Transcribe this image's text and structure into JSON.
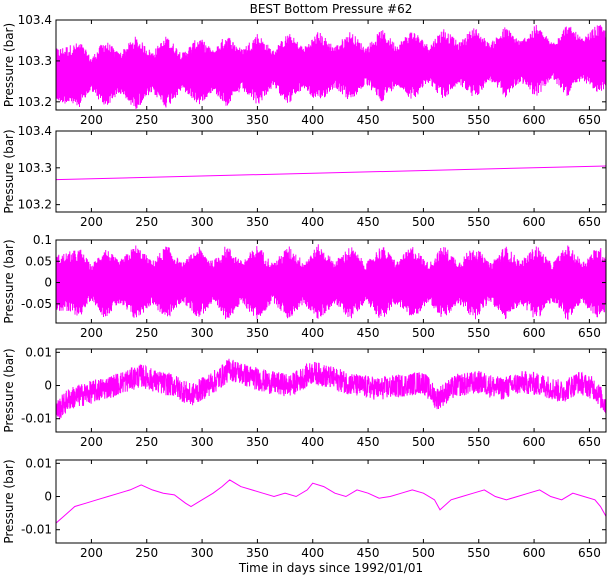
{
  "figure": {
    "title": "BEST Bottom Pressure #62",
    "xlabel": "Time in days since 1992/01/01",
    "trace_color": "#ff00ff"
  },
  "chart_data": [
    {
      "type": "line",
      "ylabel": "Pressure (bar)",
      "xlim": [
        168,
        665
      ],
      "ylim": [
        103.18,
        103.4
      ],
      "xticks": [
        200,
        250,
        300,
        350,
        400,
        450,
        500,
        550,
        600,
        650
      ],
      "yticks": [
        103.2,
        103.3,
        103.4
      ],
      "ytick_labels": [
        "103.2",
        "103.3",
        "103.4"
      ],
      "series": [
        {
          "x_start": 168,
          "x_end": 665,
          "trend_start": 103.265,
          "trend_end": 103.305,
          "envelope": [
            [
              168,
              0.065
            ],
            [
              190,
              0.08
            ],
            [
              200,
              0.04
            ],
            [
              212,
              0.085
            ],
            [
              225,
              0.05
            ],
            [
              240,
              0.09
            ],
            [
              255,
              0.05
            ],
            [
              268,
              0.09
            ],
            [
              282,
              0.045
            ],
            [
              297,
              0.085
            ],
            [
              310,
              0.05
            ],
            [
              322,
              0.09
            ],
            [
              336,
              0.05
            ],
            [
              350,
              0.09
            ],
            [
              364,
              0.045
            ],
            [
              378,
              0.088
            ],
            [
              392,
              0.05
            ],
            [
              405,
              0.09
            ],
            [
              420,
              0.05
            ],
            [
              434,
              0.088
            ],
            [
              448,
              0.045
            ],
            [
              462,
              0.09
            ],
            [
              476,
              0.05
            ],
            [
              490,
              0.088
            ],
            [
              505,
              0.045
            ],
            [
              518,
              0.09
            ],
            [
              532,
              0.05
            ],
            [
              546,
              0.09
            ],
            [
              560,
              0.045
            ],
            [
              574,
              0.088
            ],
            [
              588,
              0.05
            ],
            [
              602,
              0.09
            ],
            [
              616,
              0.045
            ],
            [
              630,
              0.09
            ],
            [
              644,
              0.05
            ],
            [
              658,
              0.088
            ],
            [
              665,
              0.07
            ]
          ]
        }
      ]
    },
    {
      "type": "line",
      "ylabel": "Pressure (bar)",
      "xlim": [
        168,
        665
      ],
      "ylim": [
        103.18,
        103.4
      ],
      "xticks": [
        200,
        250,
        300,
        350,
        400,
        450,
        500,
        550,
        600,
        650
      ],
      "yticks": [
        103.2,
        103.3,
        103.4
      ],
      "ytick_labels": [
        "103.2",
        "103.3",
        "103.4"
      ],
      "series": [
        {
          "x": [
            168,
            665
          ],
          "y": [
            103.268,
            103.305
          ]
        }
      ]
    },
    {
      "type": "line",
      "ylabel": "Pressure (bar)",
      "xlim": [
        168,
        665
      ],
      "ylim": [
        -0.095,
        0.1
      ],
      "xticks": [
        200,
        250,
        300,
        350,
        400,
        450,
        500,
        550,
        600,
        650
      ],
      "yticks": [
        -0.05,
        0,
        0.05,
        0.1
      ],
      "ytick_labels": [
        "-0.05",
        "0",
        "0.05",
        "0.1"
      ],
      "series": [
        {
          "x_start": 168,
          "x_end": 665,
          "trend_start": 0,
          "trend_end": 0,
          "envelope": [
            [
              168,
              0.065
            ],
            [
              190,
              0.08
            ],
            [
              200,
              0.04
            ],
            [
              212,
              0.085
            ],
            [
              225,
              0.05
            ],
            [
              240,
              0.09
            ],
            [
              255,
              0.05
            ],
            [
              268,
              0.09
            ],
            [
              282,
              0.045
            ],
            [
              297,
              0.085
            ],
            [
              310,
              0.05
            ],
            [
              322,
              0.09
            ],
            [
              336,
              0.05
            ],
            [
              350,
              0.09
            ],
            [
              364,
              0.045
            ],
            [
              378,
              0.088
            ],
            [
              392,
              0.05
            ],
            [
              405,
              0.09
            ],
            [
              420,
              0.05
            ],
            [
              434,
              0.088
            ],
            [
              448,
              0.045
            ],
            [
              462,
              0.09
            ],
            [
              476,
              0.05
            ],
            [
              490,
              0.088
            ],
            [
              505,
              0.045
            ],
            [
              518,
              0.09
            ],
            [
              532,
              0.05
            ],
            [
              546,
              0.09
            ],
            [
              560,
              0.045
            ],
            [
              574,
              0.088
            ],
            [
              588,
              0.05
            ],
            [
              602,
              0.09
            ],
            [
              616,
              0.045
            ],
            [
              630,
              0.09
            ],
            [
              644,
              0.05
            ],
            [
              658,
              0.088
            ],
            [
              665,
              0.07
            ]
          ]
        }
      ]
    },
    {
      "type": "line",
      "ylabel": "Pressure (bar)",
      "xlim": [
        168,
        665
      ],
      "ylim": [
        -0.014,
        0.011
      ],
      "xticks": [
        200,
        250,
        300,
        350,
        400,
        450,
        500,
        550,
        600,
        650
      ],
      "yticks": [
        -0.01,
        0,
        0.01
      ],
      "ytick_labels": [
        "-0.01",
        "0",
        "0.01"
      ],
      "series": [
        {
          "x_start": 168,
          "x_end": 665,
          "noise_amplitude": 0.0035,
          "trend": [
            [
              168,
              -0.008
            ],
            [
              180,
              -0.004
            ],
            [
              200,
              -0.002
            ],
            [
              220,
              0.0
            ],
            [
              245,
              0.003
            ],
            [
              260,
              0.001
            ],
            [
              275,
              0.0
            ],
            [
              290,
              -0.003
            ],
            [
              300,
              -0.001
            ],
            [
              315,
              0.002
            ],
            [
              325,
              0.005
            ],
            [
              340,
              0.003
            ],
            [
              360,
              0.001
            ],
            [
              380,
              0.0
            ],
            [
              400,
              0.004
            ],
            [
              420,
              0.002
            ],
            [
              440,
              0.0
            ],
            [
              460,
              -0.001
            ],
            [
              480,
              0.0
            ],
            [
              500,
              0.001
            ],
            [
              512,
              -0.004
            ],
            [
              530,
              0.0
            ],
            [
              550,
              0.001
            ],
            [
              570,
              -0.001
            ],
            [
              590,
              0.001
            ],
            [
              610,
              0.0
            ],
            [
              625,
              -0.002
            ],
            [
              640,
              0.001
            ],
            [
              655,
              -0.001
            ],
            [
              665,
              -0.006
            ]
          ]
        }
      ]
    },
    {
      "type": "line",
      "ylabel": "Pressure (bar)",
      "xlim": [
        168,
        665
      ],
      "ylim": [
        -0.014,
        0.011
      ],
      "xticks": [
        200,
        250,
        300,
        350,
        400,
        450,
        500,
        550,
        600,
        650
      ],
      "yticks": [
        -0.01,
        0,
        0.01
      ],
      "ytick_labels": [
        "-0.01",
        "0",
        "0.01"
      ],
      "series": [
        {
          "x": [
            168,
            175,
            185,
            195,
            205,
            215,
            225,
            235,
            245,
            255,
            265,
            275,
            285,
            290,
            300,
            310,
            318,
            325,
            335,
            345,
            355,
            365,
            375,
            385,
            395,
            400,
            410,
            420,
            430,
            440,
            450,
            460,
            470,
            480,
            490,
            500,
            510,
            515,
            525,
            535,
            545,
            555,
            565,
            575,
            585,
            595,
            605,
            615,
            625,
            635,
            645,
            655,
            660,
            665
          ],
          "y": [
            -0.008,
            -0.006,
            -0.003,
            -0.002,
            -0.001,
            0.0,
            0.001,
            0.002,
            0.0035,
            0.002,
            0.001,
            0.0005,
            -0.002,
            -0.003,
            -0.001,
            0.001,
            0.003,
            0.005,
            0.003,
            0.002,
            0.001,
            0.0,
            0.001,
            0.0,
            0.002,
            0.004,
            0.003,
            0.001,
            0.0,
            0.002,
            0.001,
            -0.0005,
            0.0,
            0.001,
            0.002,
            0.001,
            -0.001,
            -0.004,
            -0.001,
            0.0,
            0.001,
            0.002,
            0.0,
            -0.001,
            0.0,
            0.001,
            0.002,
            0.0,
            -0.001,
            0.001,
            0.0,
            -0.001,
            -0.003,
            -0.006
          ]
        }
      ]
    }
  ]
}
